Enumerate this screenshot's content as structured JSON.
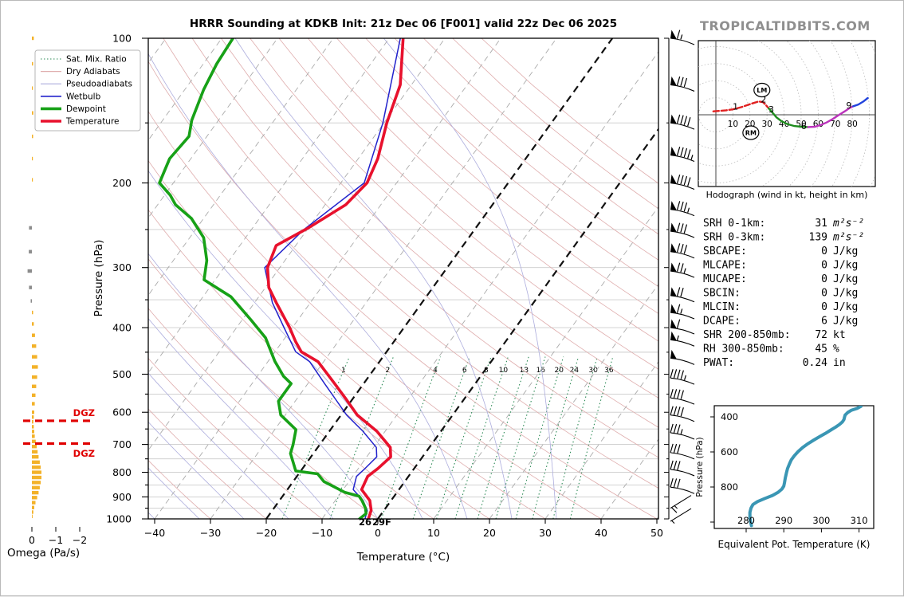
{
  "watermark": "TROPICALTIDBITS.COM",
  "colors": {
    "temperature": "#e8112d",
    "dewpoint": "#17a117",
    "wetbulb": "#2222cc",
    "dry_adiabat": "#dfadad",
    "pseudoadiabat": "#adaddd",
    "mix_ratio": "#2e8b57",
    "isotherm": "#aaaaaa",
    "isotherm_highlight": "#111111",
    "pressure_line": "#cccccc",
    "omega_up": "#f3b229",
    "omega_down": "#8c8c8c",
    "dgz": "#e00000",
    "thetae_line": "#3a96b4",
    "hodo_ring": "#bbbbbb"
  },
  "legend": {
    "items": [
      {
        "label": "Sat. Mix. Ratio",
        "style": "mixratio"
      },
      {
        "label": "Dry Adiabats",
        "style": "dry"
      },
      {
        "label": "Pseudoadiabats",
        "style": "pseudo"
      },
      {
        "label": "Wetbulb",
        "style": "wetbulb"
      },
      {
        "label": "Dewpoint",
        "style": "dewpoint"
      },
      {
        "label": "Temperature",
        "style": "temperature"
      }
    ]
  },
  "stats": {
    "rows": [
      {
        "label": "SRH 0-1km:",
        "value": "31",
        "unit": "m²s⁻²",
        "color": "#000000",
        "unit_italic": true
      },
      {
        "label": "SRH 0-3km:",
        "value": "139",
        "unit": "m²s⁻²",
        "color": "#000000",
        "unit_italic": true
      },
      {
        "label": "SBCAPE:",
        "value": "0",
        "unit": "J/kg",
        "color": "#000000",
        "unit_italic": false
      },
      {
        "label": "MLCAPE:",
        "value": "0",
        "unit": "J/kg",
        "color": "#000000",
        "unit_italic": false
      },
      {
        "label": "MUCAPE:",
        "value": "0",
        "unit": "J/kg",
        "color": "#000000",
        "unit_italic": false
      },
      {
        "label": "SBCIN:",
        "value": "0",
        "unit": "J/kg",
        "color": "#000000",
        "unit_italic": false
      },
      {
        "label": "MLCIN:",
        "value": "0",
        "unit": "J/kg",
        "color": "#000000",
        "unit_italic": false
      },
      {
        "label": "DCAPE:",
        "value": "6",
        "unit": "J/kg",
        "color": "#2929cc",
        "unit_italic": false
      },
      {
        "label": "SHR 200-850mb:",
        "value": "72",
        "unit": "kt",
        "color": "#b22222",
        "unit_italic": false
      },
      {
        "label": "RH 300-850mb:",
        "value": "45",
        "unit": "%",
        "color": "#b8860b",
        "unit_italic": false
      },
      {
        "label": "PWAT:",
        "value": "0.24",
        "unit": "in",
        "color": "#000000",
        "unit_italic": false
      }
    ]
  },
  "chart_data": {
    "skewt": {
      "type": "line",
      "title": "HRRR Sounding at KDKB Init: 21z Dec 06 [F001] valid 22z Dec 06 2025",
      "xlabel": "Temperature (°C)",
      "ylabel": "Pressure (hPa)",
      "xlim": [
        -40,
        50
      ],
      "ylim": [
        1050,
        100
      ],
      "x_ticks": [
        -40,
        -30,
        -20,
        -10,
        0,
        10,
        20,
        30,
        40,
        50
      ],
      "y_ticks": [
        100,
        200,
        300,
        400,
        500,
        600,
        700,
        800,
        900,
        1000
      ],
      "isotherm_step": 10,
      "isotherm_highlights": [
        0,
        -20
      ],
      "mixing_ratio_values": [
        1,
        2,
        4,
        6,
        8,
        10,
        13,
        16,
        20,
        24,
        30,
        36
      ],
      "surface_dewpoint_label": "26",
      "surface_temp_label": "29F",
      "series": [
        {
          "name": "temperature",
          "points": [
            [
              100,
              -57.5
            ],
            [
              125,
              -52
            ],
            [
              150,
              -49.5
            ],
            [
              178,
              -46.5
            ],
            [
              200,
              -45.3
            ],
            [
              222,
              -46.3
            ],
            [
              248,
              -50
            ],
            [
              270,
              -53.5
            ],
            [
              300,
              -52.2
            ],
            [
              330,
              -49.4
            ],
            [
              355,
              -46.1
            ],
            [
              400,
              -40.5
            ],
            [
              427,
              -37.7
            ],
            [
              449,
              -35.3
            ],
            [
              471,
              -31
            ],
            [
              523,
              -25.2
            ],
            [
              564,
              -21.1
            ],
            [
              608,
              -17.1
            ],
            [
              657,
              -11.5
            ],
            [
              710,
              -7
            ],
            [
              743,
              -5.7
            ],
            [
              786,
              -6.5
            ],
            [
              816,
              -7.3
            ],
            [
              869,
              -6.7
            ],
            [
              916,
              -3.8
            ],
            [
              960,
              -2.3
            ],
            [
              1000,
              -1.7
            ]
          ]
        },
        {
          "name": "dewpoint",
          "points": [
            [
              100,
              -88
            ],
            [
              113,
              -87.6
            ],
            [
              128,
              -86.6
            ],
            [
              148,
              -84.8
            ],
            [
              160,
              -83.2
            ],
            [
              178,
              -83.8
            ],
            [
              200,
              -82.5
            ],
            [
              212,
              -79
            ],
            [
              222,
              -76.8
            ],
            [
              237,
              -72.2
            ],
            [
              260,
              -67.5
            ],
            [
              290,
              -64
            ],
            [
              318,
              -62
            ],
            [
              345,
              -55
            ],
            [
              385,
              -48.5
            ],
            [
              420,
              -43.5
            ],
            [
              470,
              -38.8
            ],
            [
              505,
              -35.3
            ],
            [
              523,
              -33
            ],
            [
              569,
              -33
            ],
            [
              608,
              -30.8
            ],
            [
              652,
              -26.2
            ],
            [
              700,
              -24.8
            ],
            [
              731,
              -24.1
            ],
            [
              795,
              -20.9
            ],
            [
              806,
              -16.6
            ],
            [
              836,
              -14.5
            ],
            [
              881,
              -9.3
            ],
            [
              897,
              -6.3
            ],
            [
              916,
              -5.2
            ],
            [
              950,
              -3.6
            ],
            [
              975,
              -2.8
            ],
            [
              1000,
              -3.3
            ]
          ]
        },
        {
          "name": "wetbulb",
          "points": [
            [
              100,
              -58
            ],
            [
              150,
              -50.2
            ],
            [
              200,
              -45.8
            ],
            [
              250,
              -50.6
            ],
            [
              300,
              -52.7
            ],
            [
              355,
              -46.8
            ],
            [
              400,
              -41.5
            ],
            [
              449,
              -36.3
            ],
            [
              471,
              -32.5
            ],
            [
              523,
              -27
            ],
            [
              564,
              -23
            ],
            [
              608,
              -19
            ],
            [
              657,
              -14
            ],
            [
              710,
              -9.5
            ],
            [
              743,
              -8.2
            ],
            [
              786,
              -8.8
            ],
            [
              816,
              -9.3
            ],
            [
              869,
              -8.2
            ],
            [
              916,
              -5
            ],
            [
              960,
              -3
            ],
            [
              1000,
              -2.3
            ]
          ]
        }
      ]
    },
    "hodograph": {
      "type": "line",
      "caption": "Hodograph (wind in kt, height in km)",
      "ring_step_kt": 10,
      "tick_labels": [
        10,
        20,
        30,
        40,
        50,
        60,
        70,
        80
      ],
      "segments": [
        {
          "name": "0-3km",
          "color": "#e02020",
          "dashed": true,
          "points": [
            [
              -1.5,
              2
            ],
            [
              2,
              2.3
            ],
            [
              6,
              2.6
            ],
            [
              10,
              3.2
            ],
            [
              15,
              4.5
            ],
            [
              20,
              6.2
            ],
            [
              25,
              7.8
            ],
            [
              27.5,
              7.5
            ],
            [
              29.5,
              5.5
            ],
            [
              31,
              3.8
            ]
          ]
        },
        {
          "name": "3-6km",
          "color": "#1e8c1e",
          "dashed": false,
          "points": [
            [
              31,
              3.8
            ],
            [
              33,
              1.5
            ],
            [
              35.5,
              -1.5
            ],
            [
              38.5,
              -3.8
            ],
            [
              42,
              -5.5
            ],
            [
              46,
              -6.6
            ],
            [
              50,
              -7
            ],
            [
              54,
              -7.2
            ]
          ]
        },
        {
          "name": "6-9km",
          "color": "#bb33bb",
          "dashed": false,
          "points": [
            [
              54,
              -7.2
            ],
            [
              58,
              -7
            ],
            [
              61.5,
              -6
            ],
            [
              65,
              -4.5
            ],
            [
              68.5,
              -2.5
            ],
            [
              72,
              -0.2
            ],
            [
              75.5,
              2
            ],
            [
              78.5,
              4
            ],
            [
              80.5,
              5
            ]
          ]
        },
        {
          "name": "9km+",
          "color": "#2244dd",
          "dashed": false,
          "points": [
            [
              80.5,
              5
            ],
            [
              83.5,
              6
            ],
            [
              86.5,
              7.8
            ],
            [
              89,
              9.8
            ]
          ]
        }
      ],
      "height_labels": [
        {
          "label": "1",
          "u": 11.5,
          "v": 4.8
        },
        {
          "label": "2",
          "u": 28,
          "v": 9
        },
        {
          "label": "3",
          "u": 32.5,
          "v": 3.2
        },
        {
          "label": "6",
          "u": 51.5,
          "v": -6.5
        },
        {
          "label": "9",
          "u": 78,
          "v": 5.5
        }
      ],
      "markers": [
        {
          "label": "LM",
          "u": 27,
          "v": 14.5
        },
        {
          "label": "RM",
          "u": 20.5,
          "v": -10.5
        }
      ]
    },
    "omega": {
      "type": "bar",
      "xlabel": "Omega (Pa/s)",
      "x_ticks": [
        0,
        -1,
        -2
      ],
      "dgz_label": "DGZ",
      "dgz_levels_hpa": [
        625,
        697
      ],
      "bars": [
        [
          100,
          -0.08
        ],
        [
          113,
          -0.05
        ],
        [
          127,
          -0.04
        ],
        [
          143,
          -0.06
        ],
        [
          160,
          -0.05
        ],
        [
          178,
          -0.04
        ],
        [
          197,
          -0.04
        ],
        [
          248,
          0.12
        ],
        [
          278,
          0.13
        ],
        [
          305,
          0.18
        ],
        [
          330,
          0.12
        ],
        [
          352,
          0.05
        ],
        [
          372,
          -0.05
        ],
        [
          393,
          -0.08
        ],
        [
          415,
          -0.13
        ],
        [
          437,
          -0.18
        ],
        [
          460,
          -0.22
        ],
        [
          483,
          -0.25
        ],
        [
          507,
          -0.22
        ],
        [
          530,
          -0.18
        ],
        [
          553,
          -0.15
        ],
        [
          576,
          -0.12
        ],
        [
          600,
          -0.1
        ],
        [
          614,
          -0.08
        ],
        [
          628,
          -0.06
        ],
        [
          643,
          -0.08
        ],
        [
          658,
          -0.1
        ],
        [
          673,
          -0.12
        ],
        [
          690,
          -0.16
        ],
        [
          707,
          -0.2
        ],
        [
          725,
          -0.24
        ],
        [
          743,
          -0.28
        ],
        [
          762,
          -0.33
        ],
        [
          781,
          -0.37
        ],
        [
          800,
          -0.4
        ],
        [
          820,
          -0.4
        ],
        [
          840,
          -0.37
        ],
        [
          861,
          -0.33
        ],
        [
          882,
          -0.28
        ],
        [
          903,
          -0.22
        ],
        [
          925,
          -0.15
        ],
        [
          947,
          -0.1
        ],
        [
          968,
          -0.06
        ],
        [
          988,
          -0.03
        ]
      ]
    },
    "theta_e": {
      "type": "line",
      "xlabel": "Equivalent Pot. Temperature (K)",
      "ylabel": "Pressure (hPa)",
      "x_ticks": [
        280,
        290,
        300,
        310
      ],
      "y_ticks": [
        400,
        600,
        800
      ],
      "points": [
        [
          310.5,
          340
        ],
        [
          309.5,
          352
        ],
        [
          308,
          362
        ],
        [
          307,
          375
        ],
        [
          306.3,
          390
        ],
        [
          306.1,
          405
        ],
        [
          306,
          415
        ],
        [
          305.6,
          428
        ],
        [
          304.8,
          443
        ],
        [
          303.8,
          458
        ],
        [
          302.5,
          475
        ],
        [
          301,
          495
        ],
        [
          299.5,
          513
        ],
        [
          298,
          532
        ],
        [
          296.5,
          552
        ],
        [
          295,
          575
        ],
        [
          293.8,
          598
        ],
        [
          292.8,
          622
        ],
        [
          292,
          645
        ],
        [
          291.5,
          668
        ],
        [
          291,
          695
        ],
        [
          290.7,
          720
        ],
        [
          290.4,
          748
        ],
        [
          290.2,
          775
        ],
        [
          290,
          795
        ],
        [
          289.5,
          812
        ],
        [
          288.5,
          830
        ],
        [
          287,
          848
        ],
        [
          285,
          865
        ],
        [
          283,
          883
        ],
        [
          281.8,
          900
        ],
        [
          281.3,
          920
        ],
        [
          281,
          945
        ],
        [
          281,
          975
        ],
        [
          281.2,
          1000
        ],
        [
          281.4,
          1020
        ]
      ]
    },
    "wind_barbs": {
      "units": "kt",
      "levels": [
        {
          "p": 100,
          "spd": 65,
          "light": false
        },
        {
          "p": 125,
          "spd": 80,
          "light": false
        },
        {
          "p": 150,
          "spd": 90,
          "light": false
        },
        {
          "p": 175,
          "spd": 95,
          "light": false
        },
        {
          "p": 200,
          "spd": 90,
          "light": false
        },
        {
          "p": 227,
          "spd": 85,
          "light": false
        },
        {
          "p": 252,
          "spd": 80,
          "light": false
        },
        {
          "p": 278,
          "spd": 80,
          "light": false
        },
        {
          "p": 305,
          "spd": 75,
          "light": false
        },
        {
          "p": 343,
          "spd": 70,
          "light": false
        },
        {
          "p": 372,
          "spd": 65,
          "light": false
        },
        {
          "p": 400,
          "spd": 60,
          "light": false
        },
        {
          "p": 424,
          "spd": 55,
          "light": false
        },
        {
          "p": 463,
          "spd": 50,
          "light": false
        },
        {
          "p": 509,
          "spd": 45,
          "light": false
        },
        {
          "p": 560,
          "spd": 40,
          "light": false
        },
        {
          "p": 608,
          "spd": 40,
          "light": false
        },
        {
          "p": 662,
          "spd": 35,
          "light": false
        },
        {
          "p": 728,
          "spd": 30,
          "light": false
        },
        {
          "p": 789,
          "spd": 30,
          "light": false
        },
        {
          "p": 859,
          "spd": 30,
          "light": false
        },
        {
          "p": 925,
          "spd": 15,
          "light": true
        },
        {
          "p": 985,
          "spd": 8,
          "light": true
        }
      ]
    }
  }
}
